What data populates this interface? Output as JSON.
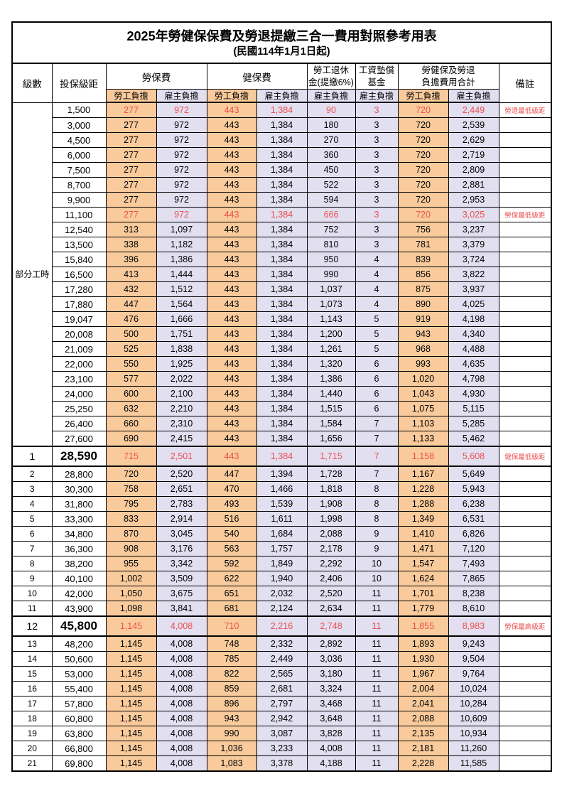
{
  "title": "2025年勞健保保費及勞退提繳三合一費用對照參考用表",
  "subtitle": "(民國114年1月1日起)",
  "colors": {
    "worker_fill": "#F9CB9C",
    "employer_fill": "#E2DFF1",
    "highlight_red": "#EC4F4F",
    "border": "#000000"
  },
  "header": {
    "level": "級數",
    "bracket": "投保級距",
    "labor_insurance": "勞保費",
    "health_insurance": "健保費",
    "pension_line1": "勞工退休",
    "pension_line2": "金(提繳6%)",
    "wage_fund_line1": "工資墊償",
    "wage_fund_line2": "基金",
    "total_line1": "勞健保及勞退",
    "total_line2": "負擔費用合計",
    "remark": "備註",
    "worker": "勞工負擔",
    "employer": "雇主負擔"
  },
  "part_time_label": "部分工時",
  "rows": [
    {
      "bracket": "1,500",
      "v": [
        "277",
        "972",
        "443",
        "1,384",
        "90",
        "3",
        "720",
        "2,449"
      ],
      "remark": "勞退最低級距",
      "red": true
    },
    {
      "bracket": "3,000",
      "v": [
        "277",
        "972",
        "443",
        "1,384",
        "180",
        "3",
        "720",
        "2,539"
      ]
    },
    {
      "bracket": "4,500",
      "v": [
        "277",
        "972",
        "443",
        "1,384",
        "270",
        "3",
        "720",
        "2,629"
      ]
    },
    {
      "bracket": "6,000",
      "v": [
        "277",
        "972",
        "443",
        "1,384",
        "360",
        "3",
        "720",
        "2,719"
      ]
    },
    {
      "bracket": "7,500",
      "v": [
        "277",
        "972",
        "443",
        "1,384",
        "450",
        "3",
        "720",
        "2,809"
      ]
    },
    {
      "bracket": "8,700",
      "v": [
        "277",
        "972",
        "443",
        "1,384",
        "522",
        "3",
        "720",
        "2,881"
      ]
    },
    {
      "bracket": "9,900",
      "v": [
        "277",
        "972",
        "443",
        "1,384",
        "594",
        "3",
        "720",
        "2,953"
      ]
    },
    {
      "bracket": "11,100",
      "v": [
        "277",
        "972",
        "443",
        "1,384",
        "666",
        "3",
        "720",
        "3,025"
      ],
      "remark": "勞保最低級距",
      "red": true
    },
    {
      "bracket": "12,540",
      "v": [
        "313",
        "1,097",
        "443",
        "1,384",
        "752",
        "3",
        "756",
        "3,237"
      ]
    },
    {
      "bracket": "13,500",
      "v": [
        "338",
        "1,182",
        "443",
        "1,384",
        "810",
        "3",
        "781",
        "3,379"
      ]
    },
    {
      "bracket": "15,840",
      "v": [
        "396",
        "1,386",
        "443",
        "1,384",
        "950",
        "4",
        "839",
        "3,724"
      ]
    },
    {
      "bracket": "16,500",
      "v": [
        "413",
        "1,444",
        "443",
        "1,384",
        "990",
        "4",
        "856",
        "3,822"
      ]
    },
    {
      "bracket": "17,280",
      "v": [
        "432",
        "1,512",
        "443",
        "1,384",
        "1,037",
        "4",
        "875",
        "3,937"
      ]
    },
    {
      "bracket": "17,880",
      "v": [
        "447",
        "1,564",
        "443",
        "1,384",
        "1,073",
        "4",
        "890",
        "4,025"
      ]
    },
    {
      "bracket": "19,047",
      "v": [
        "476",
        "1,666",
        "443",
        "1,384",
        "1,143",
        "5",
        "919",
        "4,198"
      ]
    },
    {
      "bracket": "20,008",
      "v": [
        "500",
        "1,751",
        "443",
        "1,384",
        "1,200",
        "5",
        "943",
        "4,340"
      ]
    },
    {
      "bracket": "21,009",
      "v": [
        "525",
        "1,838",
        "443",
        "1,384",
        "1,261",
        "5",
        "968",
        "4,488"
      ]
    },
    {
      "bracket": "22,000",
      "v": [
        "550",
        "1,925",
        "443",
        "1,384",
        "1,320",
        "6",
        "993",
        "4,635"
      ]
    },
    {
      "bracket": "23,100",
      "v": [
        "577",
        "2,022",
        "443",
        "1,384",
        "1,386",
        "6",
        "1,020",
        "4,798"
      ]
    },
    {
      "bracket": "24,000",
      "v": [
        "600",
        "2,100",
        "443",
        "1,384",
        "1,440",
        "6",
        "1,043",
        "4,930"
      ]
    },
    {
      "bracket": "25,250",
      "v": [
        "632",
        "2,210",
        "443",
        "1,384",
        "1,515",
        "6",
        "1,075",
        "5,115"
      ]
    },
    {
      "bracket": "26,400",
      "v": [
        "660",
        "2,310",
        "443",
        "1,384",
        "1,584",
        "7",
        "1,103",
        "5,285"
      ]
    },
    {
      "bracket": "27,600",
      "v": [
        "690",
        "2,415",
        "443",
        "1,384",
        "1,656",
        "7",
        "1,133",
        "5,462"
      ]
    },
    {
      "level": "1",
      "bracket": "28,590",
      "v": [
        "715",
        "2,501",
        "443",
        "1,384",
        "1,715",
        "7",
        "1,158",
        "5,608"
      ],
      "remark": "健保最低級距",
      "red": true,
      "milestone": true
    },
    {
      "level": "2",
      "bracket": "28,800",
      "v": [
        "720",
        "2,520",
        "447",
        "1,394",
        "1,728",
        "7",
        "1,167",
        "5,649"
      ]
    },
    {
      "level": "3",
      "bracket": "30,300",
      "v": [
        "758",
        "2,651",
        "470",
        "1,466",
        "1,818",
        "8",
        "1,228",
        "5,943"
      ]
    },
    {
      "level": "4",
      "bracket": "31,800",
      "v": [
        "795",
        "2,783",
        "493",
        "1,539",
        "1,908",
        "8",
        "1,288",
        "6,238"
      ]
    },
    {
      "level": "5",
      "bracket": "33,300",
      "v": [
        "833",
        "2,914",
        "516",
        "1,611",
        "1,998",
        "8",
        "1,349",
        "6,531"
      ]
    },
    {
      "level": "6",
      "bracket": "34,800",
      "v": [
        "870",
        "3,045",
        "540",
        "1,684",
        "2,088",
        "9",
        "1,410",
        "6,826"
      ]
    },
    {
      "level": "7",
      "bracket": "36,300",
      "v": [
        "908",
        "3,176",
        "563",
        "1,757",
        "2,178",
        "9",
        "1,471",
        "7,120"
      ]
    },
    {
      "level": "8",
      "bracket": "38,200",
      "v": [
        "955",
        "3,342",
        "592",
        "1,849",
        "2,292",
        "10",
        "1,547",
        "7,493"
      ]
    },
    {
      "level": "9",
      "bracket": "40,100",
      "v": [
        "1,002",
        "3,509",
        "622",
        "1,940",
        "2,406",
        "10",
        "1,624",
        "7,865"
      ]
    },
    {
      "level": "10",
      "bracket": "42,000",
      "v": [
        "1,050",
        "3,675",
        "651",
        "2,032",
        "2,520",
        "11",
        "1,701",
        "8,238"
      ]
    },
    {
      "level": "11",
      "bracket": "43,900",
      "v": [
        "1,098",
        "3,841",
        "681",
        "2,124",
        "2,634",
        "11",
        "1,779",
        "8,610"
      ]
    },
    {
      "level": "12",
      "bracket": "45,800",
      "v": [
        "1,145",
        "4,008",
        "710",
        "2,216",
        "2,748",
        "11",
        "1,855",
        "8,983"
      ],
      "remark": "勞保最高級距",
      "red": true,
      "milestone": true
    },
    {
      "level": "13",
      "bracket": "48,200",
      "v": [
        "1,145",
        "4,008",
        "748",
        "2,332",
        "2,892",
        "11",
        "1,893",
        "9,243"
      ]
    },
    {
      "level": "14",
      "bracket": "50,600",
      "v": [
        "1,145",
        "4,008",
        "785",
        "2,449",
        "3,036",
        "11",
        "1,930",
        "9,504"
      ]
    },
    {
      "level": "15",
      "bracket": "53,000",
      "v": [
        "1,145",
        "4,008",
        "822",
        "2,565",
        "3,180",
        "11",
        "1,967",
        "9,764"
      ]
    },
    {
      "level": "16",
      "bracket": "55,400",
      "v": [
        "1,145",
        "4,008",
        "859",
        "2,681",
        "3,324",
        "11",
        "2,004",
        "10,024"
      ]
    },
    {
      "level": "17",
      "bracket": "57,800",
      "v": [
        "1,145",
        "4,008",
        "896",
        "2,797",
        "3,468",
        "11",
        "2,041",
        "10,284"
      ]
    },
    {
      "level": "18",
      "bracket": "60,800",
      "v": [
        "1,145",
        "4,008",
        "943",
        "2,942",
        "3,648",
        "11",
        "2,088",
        "10,609"
      ]
    },
    {
      "level": "19",
      "bracket": "63,800",
      "v": [
        "1,145",
        "4,008",
        "990",
        "3,087",
        "3,828",
        "11",
        "2,135",
        "10,934"
      ]
    },
    {
      "level": "20",
      "bracket": "66,800",
      "v": [
        "1,145",
        "4,008",
        "1,036",
        "3,233",
        "4,008",
        "11",
        "2,181",
        "11,260"
      ]
    },
    {
      "level": "21",
      "bracket": "69,800",
      "v": [
        "1,145",
        "4,008",
        "1,083",
        "3,378",
        "4,188",
        "11",
        "2,228",
        "11,585"
      ]
    }
  ]
}
